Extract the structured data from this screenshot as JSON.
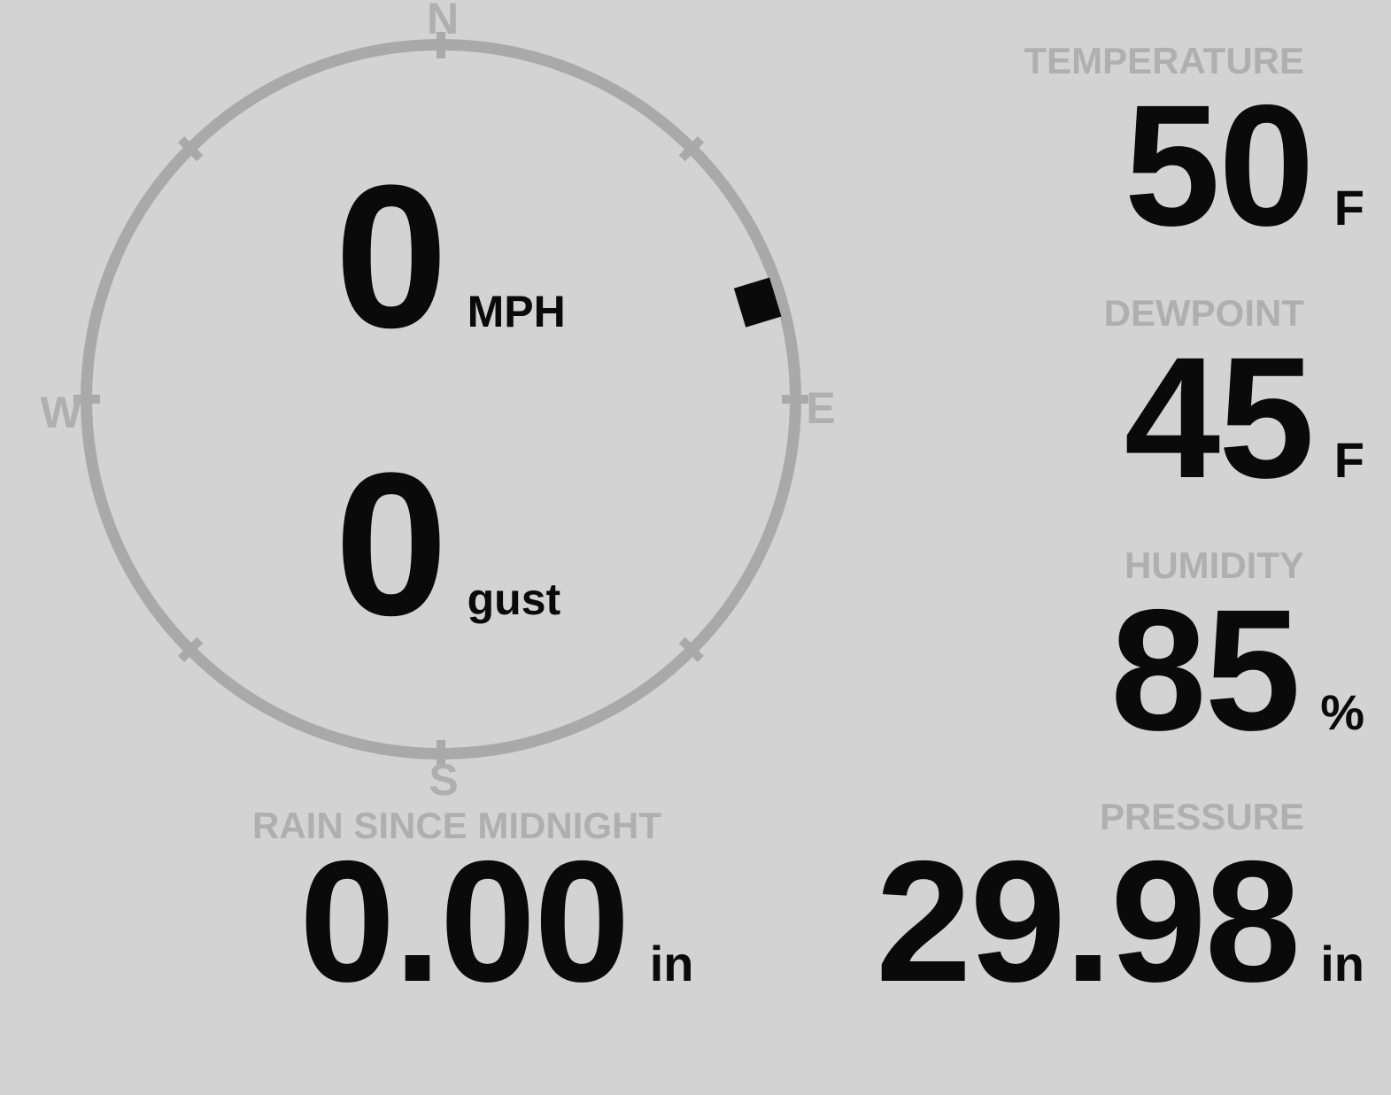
{
  "colors": {
    "background": "#d3d3d3",
    "muted_label": "#afafaf",
    "gauge_ring": "#a9a9a9",
    "value_text": "#0a0a0a"
  },
  "wind_gauge": {
    "compass": {
      "north": "N",
      "east": "E",
      "south": "S",
      "west": "W"
    },
    "speed": {
      "value": "0",
      "unit": "MPH"
    },
    "gust": {
      "value": "0",
      "unit": "gust"
    },
    "direction_degrees": 73
  },
  "stats": {
    "temperature": {
      "label": "TEMPERATURE",
      "value": "50",
      "unit": "F"
    },
    "dewpoint": {
      "label": "DEWPOINT",
      "value": "45",
      "unit": "F"
    },
    "humidity": {
      "label": "HUMIDITY",
      "value": "85",
      "unit": "%"
    },
    "rain": {
      "label": "RAIN SINCE MIDNIGHT",
      "value": "0.00",
      "unit": "in"
    },
    "pressure": {
      "label": "PRESSURE",
      "value": "29.98",
      "unit": "in"
    }
  }
}
